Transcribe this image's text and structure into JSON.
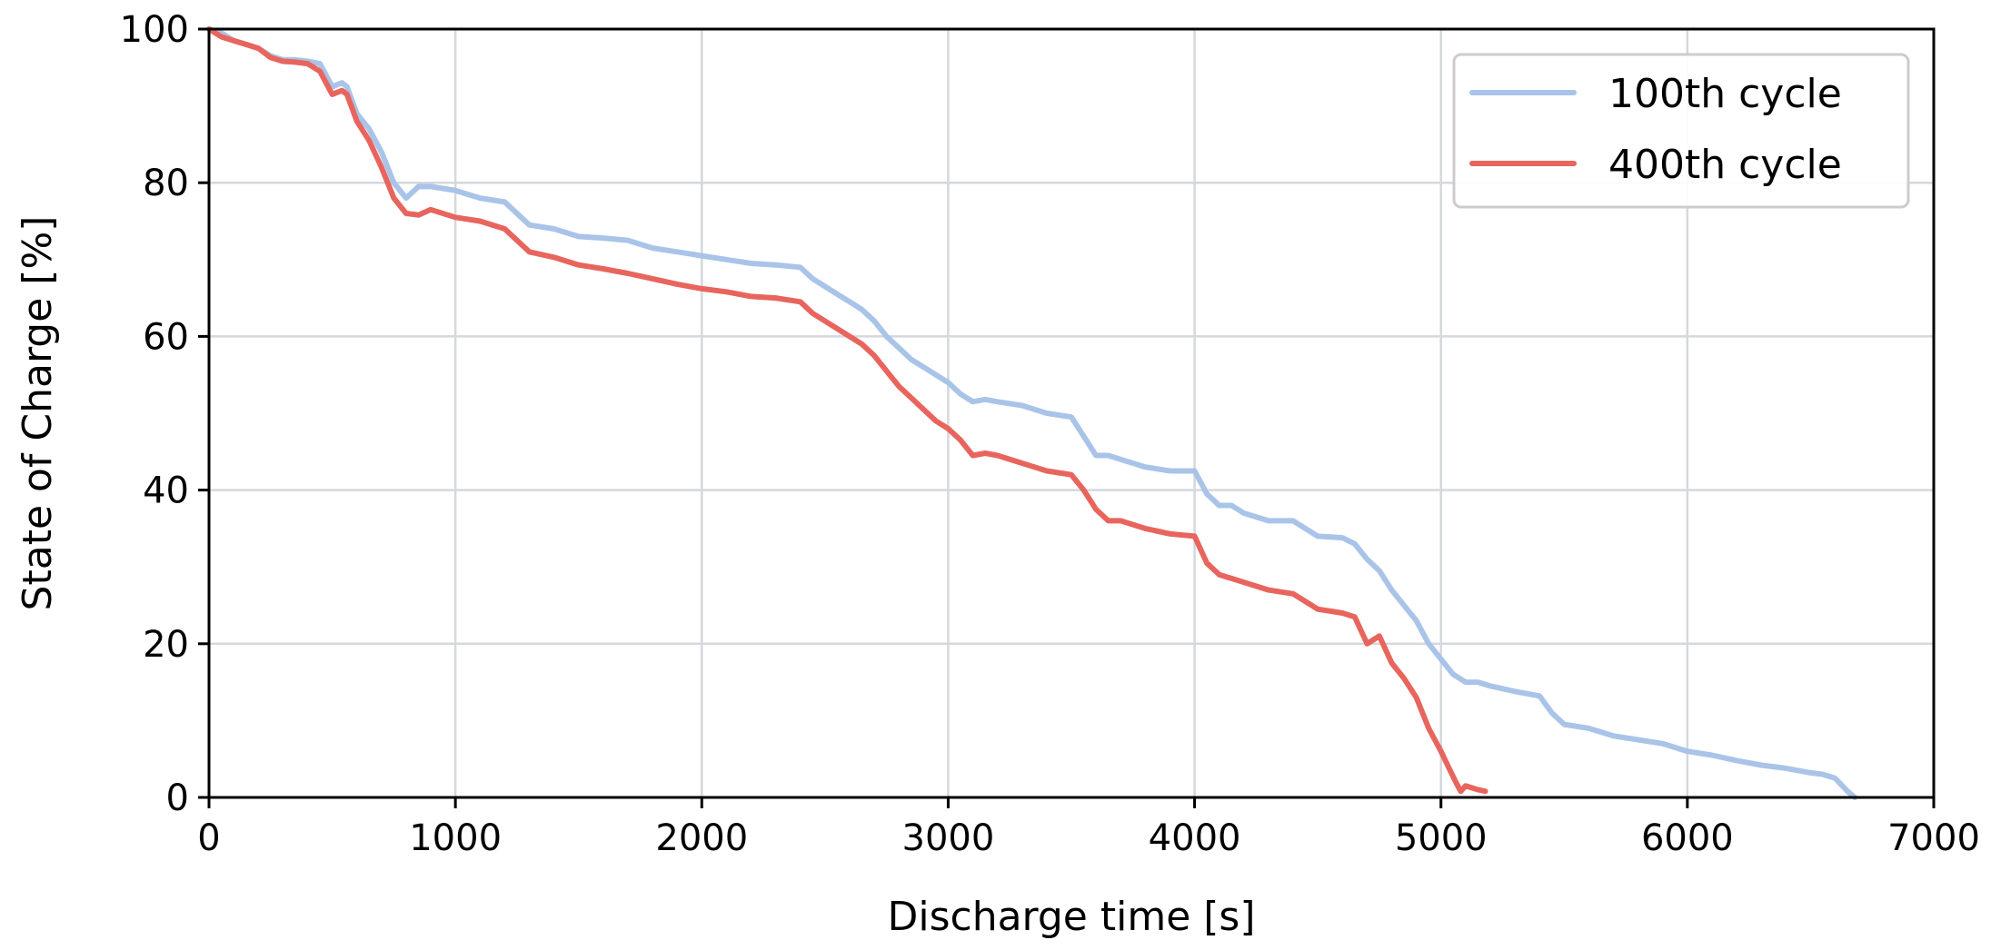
{
  "chart_data": {
    "type": "line",
    "title": "",
    "xlabel": "Discharge time [s]",
    "ylabel": "State of Charge [%]",
    "xlim": [
      0,
      7000
    ],
    "ylim": [
      0,
      100
    ],
    "xticks": [
      0,
      1000,
      2000,
      3000,
      4000,
      5000,
      6000,
      7000
    ],
    "yticks": [
      0,
      20,
      40,
      60,
      80,
      100
    ],
    "grid": true,
    "legend_position": "top-right",
    "series": [
      {
        "name": "100th cycle",
        "color": "#a9c4e8",
        "x": [
          0,
          50,
          100,
          150,
          200,
          250,
          300,
          350,
          400,
          450,
          500,
          540,
          560,
          600,
          650,
          700,
          750,
          800,
          850,
          900,
          1000,
          1100,
          1200,
          1250,
          1300,
          1400,
          1500,
          1600,
          1700,
          1800,
          1900,
          2000,
          2100,
          2200,
          2300,
          2400,
          2450,
          2500,
          2550,
          2600,
          2650,
          2700,
          2750,
          2800,
          2850,
          2900,
          2950,
          3000,
          3050,
          3100,
          3150,
          3200,
          3300,
          3400,
          3500,
          3550,
          3600,
          3650,
          3700,
          3800,
          3900,
          4000,
          4050,
          4100,
          4150,
          4200,
          4300,
          4400,
          4500,
          4600,
          4650,
          4700,
          4750,
          4800,
          4850,
          4900,
          4950,
          5000,
          5050,
          5100,
          5150,
          5200,
          5300,
          5400,
          5450,
          5500,
          5600,
          5700,
          5800,
          5900,
          6000,
          6100,
          6200,
          6300,
          6400,
          6500,
          6550,
          6600,
          6650,
          6680
        ],
        "y": [
          100,
          99.5,
          98.5,
          98,
          97.5,
          96.5,
          96,
          96,
          95.8,
          95.5,
          92.5,
          93,
          92.5,
          89,
          87,
          84,
          80,
          78,
          79.5,
          79.5,
          79,
          78,
          77.5,
          76,
          74.5,
          74,
          73,
          72.8,
          72.5,
          71.5,
          71,
          70.5,
          70,
          69.5,
          69.3,
          69,
          67.5,
          66.5,
          65.5,
          64.5,
          63.5,
          62,
          60,
          58.5,
          57,
          56,
          55,
          54,
          52.5,
          51.5,
          51.8,
          51.5,
          51,
          50,
          49.5,
          47,
          44.5,
          44.5,
          44,
          43,
          42.5,
          42.5,
          39.5,
          38,
          38,
          37,
          36,
          36,
          34,
          33.8,
          33,
          31,
          29.5,
          27,
          25,
          23,
          20,
          18,
          16,
          15,
          15,
          14.5,
          13.8,
          13.2,
          11,
          9.5,
          9,
          8,
          7.5,
          7,
          6,
          5.5,
          4.8,
          4.2,
          3.8,
          3.2,
          3,
          2.5,
          0.8,
          0
        ]
      },
      {
        "name": "400th cycle",
        "color": "#e8655e",
        "x": [
          0,
          50,
          100,
          150,
          200,
          250,
          300,
          350,
          400,
          450,
          500,
          540,
          560,
          600,
          650,
          700,
          750,
          800,
          850,
          900,
          1000,
          1100,
          1200,
          1250,
          1300,
          1400,
          1500,
          1600,
          1700,
          1800,
          1900,
          2000,
          2100,
          2200,
          2300,
          2400,
          2450,
          2500,
          2550,
          2600,
          2650,
          2700,
          2750,
          2800,
          2850,
          2900,
          2950,
          3000,
          3050,
          3100,
          3150,
          3200,
          3300,
          3400,
          3500,
          3550,
          3600,
          3650,
          3700,
          3800,
          3900,
          4000,
          4050,
          4100,
          4150,
          4200,
          4300,
          4400,
          4500,
          4600,
          4650,
          4700,
          4750,
          4800,
          4850,
          4900,
          4950,
          5000,
          5030,
          5060,
          5080,
          5100,
          5150,
          5180
        ],
        "y": [
          100,
          99,
          98.5,
          98,
          97.5,
          96.3,
          95.8,
          95.7,
          95.5,
          94.5,
          91.5,
          92,
          91.5,
          88,
          85.5,
          82,
          78,
          76,
          75.8,
          76.5,
          75.5,
          75,
          74,
          72.5,
          71,
          70.3,
          69.3,
          68.8,
          68.2,
          67.5,
          66.8,
          66.2,
          65.8,
          65.2,
          65,
          64.5,
          63,
          62,
          61,
          60,
          59,
          57.5,
          55.5,
          53.5,
          52,
          50.5,
          49,
          48,
          46.5,
          44.5,
          44.8,
          44.5,
          43.5,
          42.5,
          42,
          40,
          37.5,
          36,
          36,
          35,
          34.3,
          34,
          30.5,
          29,
          28.5,
          28,
          27,
          26.5,
          24.5,
          24,
          23.5,
          20,
          21,
          17.5,
          15.5,
          13,
          9,
          6,
          4,
          2,
          0.8,
          1.5,
          1,
          0.8
        ]
      }
    ]
  }
}
